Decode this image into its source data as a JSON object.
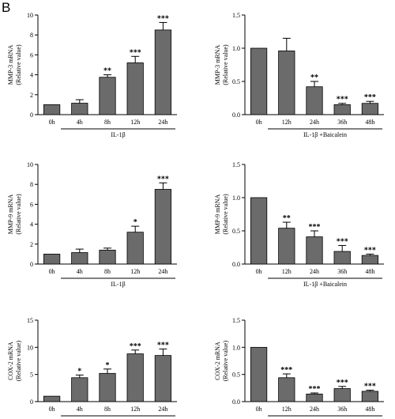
{
  "panel_label": "B",
  "colors": {
    "bar_fill": "#6b6b6b",
    "bar_stroke": "#000000",
    "axis": "#000000"
  },
  "chart_data": [
    {
      "type": "bar",
      "ylabel": [
        "MMP-3 mRNA",
        "(Relative value)"
      ],
      "xgroup_label": "IL-1β",
      "categories": [
        "0h",
        "4h",
        "8h",
        "12h",
        "24h"
      ],
      "values": [
        1.0,
        1.15,
        3.75,
        5.2,
        8.5
      ],
      "errors": [
        0,
        0.35,
        0.25,
        0.65,
        0.75
      ],
      "significance": [
        "",
        "",
        "**",
        "***",
        "***"
      ],
      "ylim": [
        0,
        10
      ],
      "yticks": [
        0,
        2,
        4,
        6,
        8,
        10
      ],
      "ytick_labels": [
        "0",
        "2",
        "4",
        "6",
        "8",
        "10"
      ]
    },
    {
      "type": "bar",
      "ylabel": [
        "MMP-3 mRNA",
        "(Relative value)"
      ],
      "xgroup_label": "IL-1β +Baicalein",
      "categories": [
        "0h",
        "12h",
        "24h",
        "36h",
        "48h"
      ],
      "values": [
        1.0,
        0.96,
        0.42,
        0.15,
        0.17
      ],
      "errors": [
        0,
        0.19,
        0.08,
        0.02,
        0.03
      ],
      "significance": [
        "",
        "",
        "**",
        "***",
        "***"
      ],
      "ylim": [
        0,
        1.5
      ],
      "yticks": [
        0,
        0.5,
        1.0,
        1.5
      ],
      "ytick_labels": [
        "0.0",
        "0.5",
        "1.0",
        "1.5"
      ]
    },
    {
      "type": "bar",
      "ylabel": [
        "MMP-9 mRNA",
        "(Relative value)"
      ],
      "xgroup_label": "IL-1β",
      "categories": [
        "0h",
        "4h",
        "8h",
        "12h",
        "24h"
      ],
      "values": [
        1.0,
        1.15,
        1.4,
        3.2,
        7.5
      ],
      "errors": [
        0,
        0.35,
        0.2,
        0.6,
        0.65
      ],
      "significance": [
        "",
        "",
        "",
        "*",
        "***"
      ],
      "ylim": [
        0,
        10
      ],
      "yticks": [
        0,
        2,
        4,
        6,
        8,
        10
      ],
      "ytick_labels": [
        "0",
        "2",
        "4",
        "6",
        "8",
        "10"
      ]
    },
    {
      "type": "bar",
      "ylabel": [
        "MMP-9 mRNA",
        "(Relative value)"
      ],
      "xgroup_label": "IL-1β +Baicalein",
      "categories": [
        "0h",
        "12h",
        "24h",
        "36h",
        "48h"
      ],
      "values": [
        1.0,
        0.54,
        0.41,
        0.19,
        0.13
      ],
      "errors": [
        0,
        0.09,
        0.09,
        0.09,
        0.02
      ],
      "significance": [
        "",
        "**",
        "***",
        "***",
        "***"
      ],
      "ylim": [
        0,
        1.5
      ],
      "yticks": [
        0,
        0.5,
        1.0,
        1.5
      ],
      "ytick_labels": [
        "0.0",
        "0.5",
        "1.0",
        "1.5"
      ]
    },
    {
      "type": "bar",
      "ylabel": [
        "COX-2 mRNA",
        "(Relative value)"
      ],
      "xgroup_label": "IL-1β",
      "categories": [
        "0h",
        "4h",
        "8h",
        "12h",
        "24h"
      ],
      "values": [
        1.0,
        4.4,
        5.2,
        8.8,
        8.5
      ],
      "errors": [
        0,
        0.5,
        0.8,
        0.7,
        1.2
      ],
      "significance": [
        "",
        "*",
        "*",
        "***",
        "***"
      ],
      "ylim": [
        0,
        15
      ],
      "yticks": [
        0,
        5,
        10,
        15
      ],
      "ytick_labels": [
        "0",
        "5",
        "10",
        "15"
      ]
    },
    {
      "type": "bar",
      "ylabel": [
        "COX-2 mRNA",
        "(Relative value)"
      ],
      "xgroup_label": "IL-1β +Baicalein",
      "categories": [
        "0h",
        "12h",
        "24h",
        "36h",
        "48h"
      ],
      "values": [
        1.0,
        0.44,
        0.14,
        0.24,
        0.19
      ],
      "errors": [
        0,
        0.07,
        0.02,
        0.04,
        0.02
      ],
      "significance": [
        "",
        "***",
        "***",
        "***",
        "***"
      ],
      "ylim": [
        0,
        1.5
      ],
      "yticks": [
        0,
        0.5,
        1.0,
        1.5
      ],
      "ytick_labels": [
        "0.0",
        "0.5",
        "1.0",
        "1.5"
      ]
    }
  ]
}
